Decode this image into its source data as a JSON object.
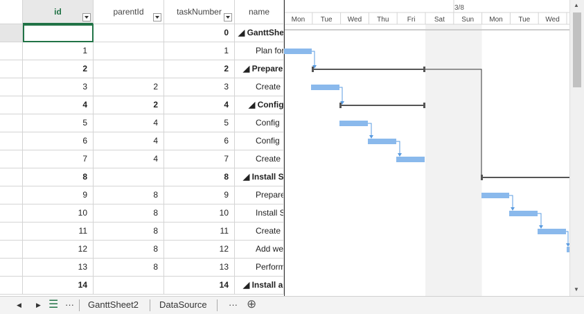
{
  "columns": [
    "id",
    "parentId",
    "taskNumber",
    "name"
  ],
  "rows": [
    [
      null,
      null,
      0,
      "GanttShee"
    ],
    [
      1,
      null,
      1,
      "Plan for P"
    ],
    [
      2,
      null,
      2,
      "Prepare f"
    ],
    [
      3,
      2,
      3,
      "Create u"
    ],
    [
      4,
      2,
      4,
      "Configu"
    ],
    [
      5,
      4,
      5,
      "Config"
    ],
    [
      6,
      4,
      6,
      "Config"
    ],
    [
      7,
      4,
      7,
      "Create"
    ],
    [
      8,
      null,
      8,
      "Install Sh"
    ],
    [
      9,
      8,
      9,
      "Prepare"
    ],
    [
      10,
      8,
      10,
      "Install S"
    ],
    [
      11,
      8,
      11,
      "Create a"
    ],
    [
      12,
      8,
      12,
      "Add we"
    ],
    [
      13,
      8,
      13,
      "Perform"
    ],
    [
      14,
      null,
      14,
      "Install an"
    ]
  ],
  "timeline": {
    "week_label": "3/8",
    "days": [
      "Mon",
      "Tue",
      "Wed",
      "Thu",
      "Fri",
      "Sat",
      "Sun",
      "Mon",
      "Tue",
      "Wed"
    ]
  },
  "tabs": [
    "GanttSheet2",
    "DataSource"
  ]
}
